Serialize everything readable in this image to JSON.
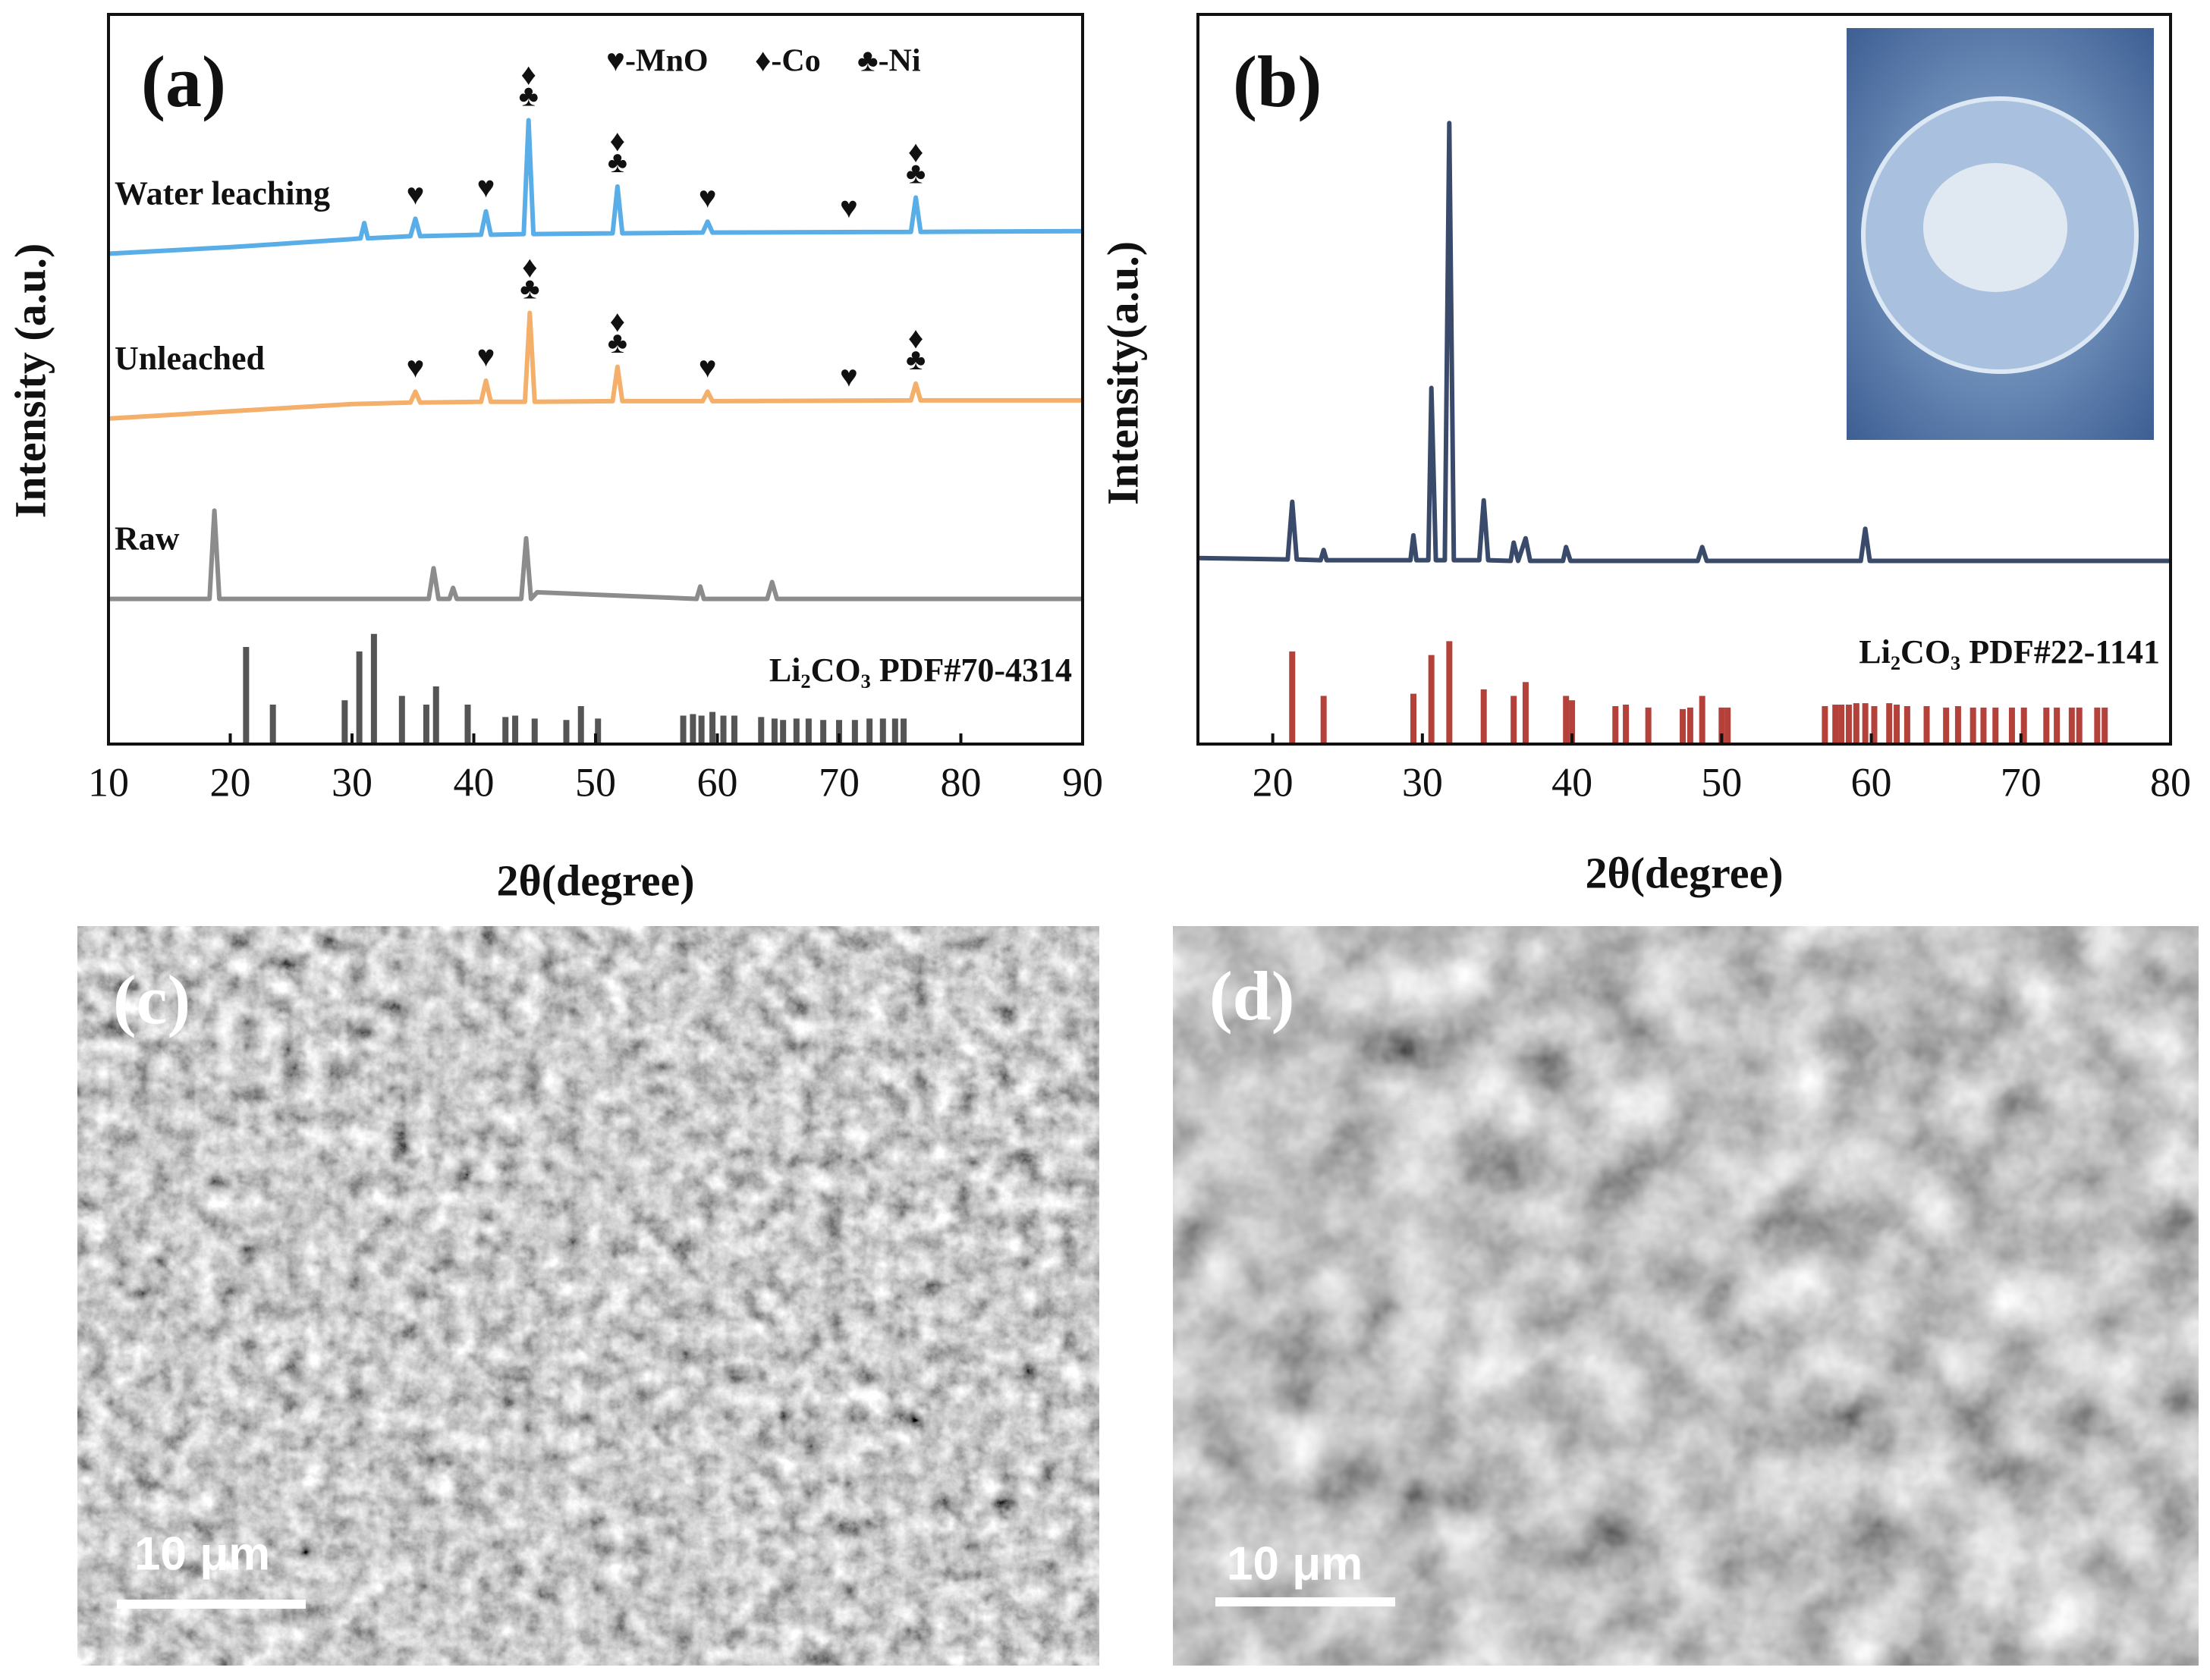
{
  "chart_data": [
    {
      "type": "line",
      "panel_label": "(a)",
      "xlabel": "2θ(degree)",
      "ylabel": "Intensity (a.u.)",
      "xlim": [
        10,
        90
      ],
      "ylim": [
        0,
        100
      ],
      "xticks": [
        10,
        20,
        30,
        40,
        50,
        60,
        70,
        80,
        90
      ],
      "legend": [
        "♥-MnO",
        "♦-Co",
        "♣-Ni"
      ],
      "series": [
        {
          "name": "Water leaching",
          "color": "#5aaee8",
          "x": [
            10,
            20,
            30,
            30.7,
            31,
            31.3,
            34.8,
            35.2,
            35.6,
            40.6,
            41,
            41.4,
            44.1,
            44.5,
            44.9,
            51.4,
            51.8,
            52.2,
            58.8,
            59.2,
            59.6,
            75.9,
            76.3,
            76.7,
            90
          ],
          "values": [
            67.2,
            68.1,
            69.2,
            69.3,
            71.4,
            69.3,
            69.6,
            72,
            69.6,
            69.8,
            73,
            69.8,
            69.9,
            85.5,
            69.9,
            70,
            76.4,
            70,
            70.1,
            71.6,
            70.1,
            70.2,
            74.9,
            70.2,
            70.3
          ],
          "markers": [
            {
              "x": 35.2,
              "symbols": [
                "♥"
              ]
            },
            {
              "x": 41,
              "symbols": [
                "♥"
              ]
            },
            {
              "x": 44.5,
              "symbols": [
                "♦",
                "♣"
              ]
            },
            {
              "x": 51.8,
              "symbols": [
                "♦",
                "♣"
              ]
            },
            {
              "x": 59.2,
              "symbols": [
                "♥"
              ]
            },
            {
              "x": 70.8,
              "symbols": [
                "♥"
              ]
            },
            {
              "x": 76.3,
              "symbols": [
                "♦",
                "♣"
              ]
            }
          ]
        },
        {
          "name": "Unleached",
          "color": "#f4b06a",
          "x": [
            10,
            20,
            30,
            34.8,
            35.2,
            35.6,
            40.6,
            41,
            41.4,
            44.2,
            44.6,
            45,
            51.4,
            51.8,
            52.2,
            58.8,
            59.2,
            59.6,
            75.9,
            76.3,
            76.7,
            90
          ],
          "values": [
            44.6,
            45.6,
            46.6,
            46.8,
            48.3,
            46.8,
            46.9,
            49.8,
            46.9,
            46.9,
            59.1,
            46.9,
            47,
            51.7,
            47,
            47,
            48.3,
            47,
            47.1,
            49.4,
            47.1,
            47.1
          ],
          "markers": [
            {
              "x": 35.2,
              "symbols": [
                "♥"
              ]
            },
            {
              "x": 41,
              "symbols": [
                "♥"
              ]
            },
            {
              "x": 44.6,
              "symbols": [
                "♦",
                "♣"
              ]
            },
            {
              "x": 51.8,
              "symbols": [
                "♦",
                "♣"
              ]
            },
            {
              "x": 59.2,
              "symbols": [
                "♥"
              ]
            },
            {
              "x": 70.8,
              "symbols": [
                "♥"
              ]
            },
            {
              "x": 76.3,
              "symbols": [
                "♦",
                "♣"
              ]
            }
          ]
        },
        {
          "name": "Raw",
          "color": "#8c8c8c",
          "x": [
            10,
            18.3,
            18.7,
            19.1,
            36.3,
            36.7,
            37.1,
            38,
            38.3,
            38.6,
            43.9,
            44.3,
            44.7,
            45.2,
            58.3,
            58.6,
            58.9,
            64.1,
            64.5,
            64.9,
            90
          ],
          "values": [
            19.9,
            19.9,
            32,
            19.9,
            19.9,
            24.1,
            19.9,
            19.9,
            21.4,
            19.9,
            19.9,
            28.2,
            19.9,
            20.8,
            19.9,
            21.6,
            19.9,
            19.9,
            22.2,
            19.9,
            19.9
          ]
        }
      ],
      "reference": {
        "name": "Li₂CO₃  PDF#70-4314",
        "color": "#555555",
        "x": [
          21.3,
          23.5,
          29.4,
          30.6,
          31.8,
          34.1,
          36.1,
          36.9,
          39.5,
          42.6,
          43.4,
          45,
          47.6,
          48.8,
          50.2,
          57.2,
          58,
          58.7,
          59.6,
          60.5,
          61.4,
          63.6,
          64.7,
          65.4,
          66.5,
          67.5,
          68.7,
          70,
          71.3,
          72.5,
          73.6,
          74.6,
          75.3
        ],
        "values": [
          13.3,
          5.4,
          6,
          12.7,
          15.1,
          6.6,
          5.4,
          7.9,
          5.4,
          3.7,
          3.9,
          3.5,
          3.3,
          5.2,
          3.5,
          3.9,
          4.1,
          3.9,
          4.4,
          3.9,
          3.9,
          3.7,
          3.5,
          3.3,
          3.5,
          3.5,
          3.3,
          3.3,
          3.3,
          3.5,
          3.5,
          3.5,
          3.5
        ]
      }
    },
    {
      "type": "line",
      "panel_label": "(b)",
      "xlabel": "2θ(degree)",
      "ylabel": "Intensity(a.u.)",
      "xlim": [
        15,
        80
      ],
      "ylim": [
        0,
        100
      ],
      "xticks": [
        20,
        30,
        40,
        50,
        60,
        70,
        80
      ],
      "series": [
        {
          "color": "#3a4a6b",
          "x": [
            15,
            21,
            21.3,
            21.6,
            23.2,
            23.4,
            23.6,
            29.2,
            29.4,
            29.6,
            30.4,
            30.6,
            30.9,
            31.5,
            31.8,
            32.1,
            33.8,
            34.1,
            34.4,
            35.9,
            36.1,
            36.4,
            36.9,
            37.2,
            39.4,
            39.6,
            39.9,
            48.4,
            48.7,
            49,
            59.3,
            59.6,
            59.9,
            80
          ],
          "values": [
            25.5,
            25.3,
            33.2,
            25.3,
            25.2,
            26.6,
            25.2,
            25.2,
            28.6,
            25.2,
            25.2,
            48.8,
            25.2,
            25.2,
            85.1,
            25.2,
            25.2,
            33.4,
            25.2,
            25.1,
            27.6,
            25.1,
            28.2,
            25.1,
            25.1,
            27,
            25.1,
            25.1,
            27,
            25.1,
            25.1,
            29.5,
            25.1,
            25.1
          ]
        }
      ],
      "reference": {
        "name": "Li₂CO₃  PDF#22-1141",
        "color": "#b5413b",
        "x": [
          21.3,
          23.4,
          29.4,
          30.6,
          31.8,
          34.1,
          36.1,
          36.9,
          39.6,
          40,
          42.9,
          43.6,
          45.1,
          47.4,
          47.9,
          48.7,
          50,
          50.4,
          56.9,
          57.6,
          58,
          58.5,
          59,
          59.6,
          60.2,
          61.2,
          61.7,
          62.4,
          63.7,
          65,
          65.8,
          66.8,
          67.5,
          68.3,
          69.4,
          70.2,
          71.7,
          72.4,
          73.4,
          73.9,
          75.1,
          75.6
        ],
        "values": [
          12.7,
          6.6,
          6.9,
          12.2,
          14.1,
          7.5,
          6.6,
          8.5,
          6.6,
          6,
          5.2,
          5.4,
          5,
          4.8,
          5,
          6.6,
          5,
          5,
          5.2,
          5.4,
          5.4,
          5.4,
          5.6,
          5.6,
          5.2,
          5.6,
          5.4,
          5.2,
          5.2,
          5,
          5.2,
          5,
          5,
          5,
          5,
          5,
          5,
          5,
          5,
          5,
          5,
          5
        ]
      }
    }
  ],
  "images": [
    {
      "panel_label": "(c)",
      "scale_bar": "10 μm"
    },
    {
      "panel_label": "(d)",
      "scale_bar": "10 μm"
    }
  ]
}
